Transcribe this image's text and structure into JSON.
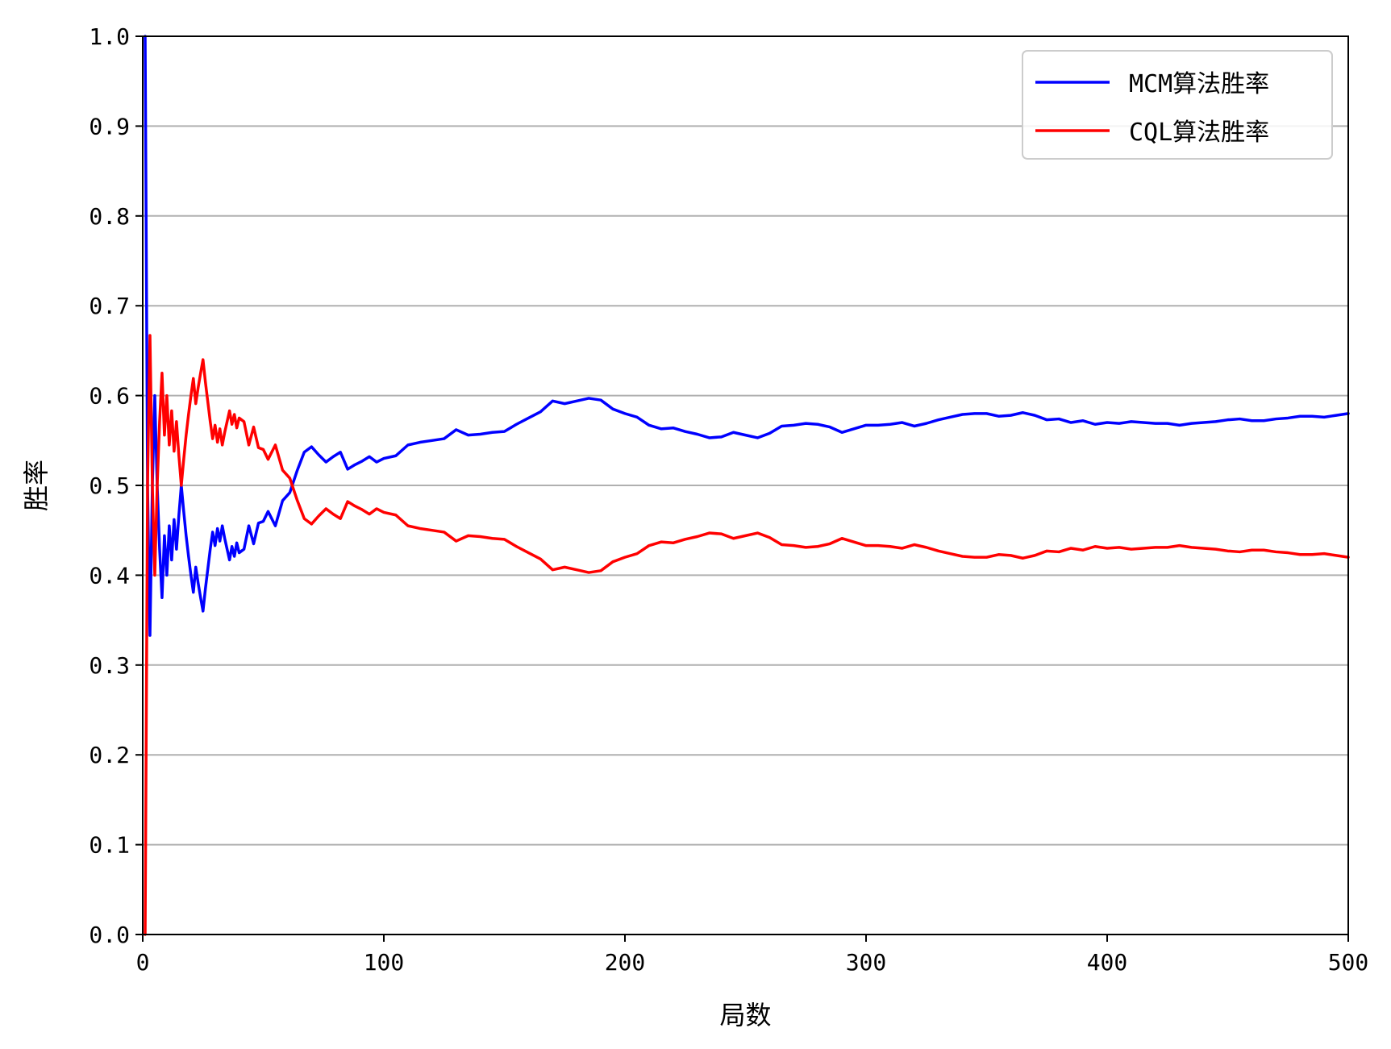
{
  "chart_data": {
    "type": "line",
    "title": "",
    "xlabel": "局数",
    "ylabel": "胜率",
    "xlim": [
      0,
      500
    ],
    "ylim": [
      0,
      1
    ],
    "xticks": [
      0,
      100,
      200,
      300,
      400,
      500
    ],
    "yticks": [
      0.0,
      0.1,
      0.2,
      0.3,
      0.4,
      0.5,
      0.6,
      0.7,
      0.8,
      0.9,
      1.0
    ],
    "xtick_labels": [
      "0",
      "100",
      "200",
      "300",
      "400",
      "500"
    ],
    "ytick_labels": [
      "0.0",
      "0.1",
      "0.2",
      "0.3",
      "0.4",
      "0.5",
      "0.6",
      "0.7",
      "0.8",
      "0.9",
      "1.0"
    ],
    "grid": "horizontal",
    "legend_position": "top-right",
    "series": [
      {
        "name": "MCM算法胜率",
        "color": "#0000ff",
        "points": [
          [
            1,
            1.0
          ],
          [
            2,
            0.5
          ],
          [
            3,
            0.333
          ],
          [
            4,
            0.5
          ],
          [
            5,
            0.6
          ],
          [
            6,
            0.5
          ],
          [
            7,
            0.429
          ],
          [
            8,
            0.375
          ],
          [
            9,
            0.444
          ],
          [
            10,
            0.4
          ],
          [
            11,
            0.455
          ],
          [
            12,
            0.417
          ],
          [
            13,
            0.462
          ],
          [
            14,
            0.429
          ],
          [
            15,
            0.467
          ],
          [
            16,
            0.5
          ],
          [
            17,
            0.471
          ],
          [
            18,
            0.444
          ],
          [
            19,
            0.421
          ],
          [
            20,
            0.4
          ],
          [
            21,
            0.381
          ],
          [
            22,
            0.409
          ],
          [
            23,
            0.391
          ],
          [
            24,
            0.375
          ],
          [
            25,
            0.36
          ],
          [
            26,
            0.385
          ],
          [
            27,
            0.407
          ],
          [
            28,
            0.429
          ],
          [
            29,
            0.448
          ],
          [
            30,
            0.433
          ],
          [
            31,
            0.452
          ],
          [
            32,
            0.438
          ],
          [
            33,
            0.455
          ],
          [
            34,
            0.441
          ],
          [
            35,
            0.429
          ],
          [
            36,
            0.417
          ],
          [
            37,
            0.432
          ],
          [
            38,
            0.421
          ],
          [
            39,
            0.436
          ],
          [
            40,
            0.425
          ],
          [
            42,
            0.429
          ],
          [
            44,
            0.455
          ],
          [
            46,
            0.435
          ],
          [
            48,
            0.458
          ],
          [
            50,
            0.46
          ],
          [
            52,
            0.471
          ],
          [
            55,
            0.455
          ],
          [
            58,
            0.483
          ],
          [
            61,
            0.492
          ],
          [
            64,
            0.516
          ],
          [
            67,
            0.537
          ],
          [
            70,
            0.543
          ],
          [
            73,
            0.534
          ],
          [
            76,
            0.526
          ],
          [
            79,
            0.532
          ],
          [
            82,
            0.537
          ],
          [
            85,
            0.518
          ],
          [
            88,
            0.523
          ],
          [
            91,
            0.527
          ],
          [
            94,
            0.532
          ],
          [
            97,
            0.526
          ],
          [
            100,
            0.53
          ],
          [
            105,
            0.533
          ],
          [
            110,
            0.545
          ],
          [
            115,
            0.548
          ],
          [
            120,
            0.55
          ],
          [
            125,
            0.552
          ],
          [
            130,
            0.562
          ],
          [
            135,
            0.556
          ],
          [
            140,
            0.557
          ],
          [
            145,
            0.559
          ],
          [
            150,
            0.56
          ],
          [
            155,
            0.568
          ],
          [
            160,
            0.575
          ],
          [
            165,
            0.582
          ],
          [
            170,
            0.594
          ],
          [
            175,
            0.591
          ],
          [
            180,
            0.594
          ],
          [
            185,
            0.597
          ],
          [
            190,
            0.595
          ],
          [
            195,
            0.585
          ],
          [
            200,
            0.58
          ],
          [
            205,
            0.576
          ],
          [
            210,
            0.567
          ],
          [
            215,
            0.563
          ],
          [
            220,
            0.564
          ],
          [
            225,
            0.56
          ],
          [
            230,
            0.557
          ],
          [
            235,
            0.553
          ],
          [
            240,
            0.554
          ],
          [
            245,
            0.559
          ],
          [
            250,
            0.556
          ],
          [
            255,
            0.553
          ],
          [
            260,
            0.558
          ],
          [
            265,
            0.566
          ],
          [
            270,
            0.567
          ],
          [
            275,
            0.569
          ],
          [
            280,
            0.568
          ],
          [
            285,
            0.565
          ],
          [
            290,
            0.559
          ],
          [
            295,
            0.563
          ],
          [
            300,
            0.567
          ],
          [
            305,
            0.567
          ],
          [
            310,
            0.568
          ],
          [
            315,
            0.57
          ],
          [
            320,
            0.566
          ],
          [
            325,
            0.569
          ],
          [
            330,
            0.573
          ],
          [
            335,
            0.576
          ],
          [
            340,
            0.579
          ],
          [
            345,
            0.58
          ],
          [
            350,
            0.58
          ],
          [
            355,
            0.577
          ],
          [
            360,
            0.578
          ],
          [
            365,
            0.581
          ],
          [
            370,
            0.578
          ],
          [
            375,
            0.573
          ],
          [
            380,
            0.574
          ],
          [
            385,
            0.57
          ],
          [
            390,
            0.572
          ],
          [
            395,
            0.568
          ],
          [
            400,
            0.57
          ],
          [
            405,
            0.569
          ],
          [
            410,
            0.571
          ],
          [
            415,
            0.57
          ],
          [
            420,
            0.569
          ],
          [
            425,
            0.569
          ],
          [
            430,
            0.567
          ],
          [
            435,
            0.569
          ],
          [
            440,
            0.57
          ],
          [
            445,
            0.571
          ],
          [
            450,
            0.573
          ],
          [
            455,
            0.574
          ],
          [
            460,
            0.572
          ],
          [
            465,
            0.572
          ],
          [
            470,
            0.574
          ],
          [
            475,
            0.575
          ],
          [
            480,
            0.577
          ],
          [
            485,
            0.577
          ],
          [
            490,
            0.576
          ],
          [
            495,
            0.578
          ],
          [
            500,
            0.58
          ]
        ]
      },
      {
        "name": "CQL算法胜率",
        "color": "#ff0000",
        "points": [
          [
            1,
            0.0
          ],
          [
            2,
            0.5
          ],
          [
            3,
            0.667
          ],
          [
            4,
            0.5
          ],
          [
            5,
            0.4
          ],
          [
            6,
            0.5
          ],
          [
            7,
            0.571
          ],
          [
            8,
            0.625
          ],
          [
            9,
            0.556
          ],
          [
            10,
            0.6
          ],
          [
            11,
            0.545
          ],
          [
            12,
            0.583
          ],
          [
            13,
            0.538
          ],
          [
            14,
            0.571
          ],
          [
            15,
            0.533
          ],
          [
            16,
            0.5
          ],
          [
            17,
            0.529
          ],
          [
            18,
            0.556
          ],
          [
            19,
            0.579
          ],
          [
            20,
            0.6
          ],
          [
            21,
            0.619
          ],
          [
            22,
            0.591
          ],
          [
            23,
            0.609
          ],
          [
            24,
            0.625
          ],
          [
            25,
            0.64
          ],
          [
            26,
            0.615
          ],
          [
            27,
            0.593
          ],
          [
            28,
            0.571
          ],
          [
            29,
            0.552
          ],
          [
            30,
            0.567
          ],
          [
            31,
            0.548
          ],
          [
            32,
            0.563
          ],
          [
            33,
            0.545
          ],
          [
            34,
            0.559
          ],
          [
            35,
            0.571
          ],
          [
            36,
            0.583
          ],
          [
            37,
            0.568
          ],
          [
            38,
            0.579
          ],
          [
            39,
            0.564
          ],
          [
            40,
            0.575
          ],
          [
            42,
            0.571
          ],
          [
            44,
            0.545
          ],
          [
            46,
            0.565
          ],
          [
            48,
            0.542
          ],
          [
            50,
            0.54
          ],
          [
            52,
            0.529
          ],
          [
            55,
            0.545
          ],
          [
            58,
            0.517
          ],
          [
            61,
            0.508
          ],
          [
            64,
            0.484
          ],
          [
            67,
            0.463
          ],
          [
            70,
            0.457
          ],
          [
            73,
            0.466
          ],
          [
            76,
            0.474
          ],
          [
            79,
            0.468
          ],
          [
            82,
            0.463
          ],
          [
            85,
            0.482
          ],
          [
            88,
            0.477
          ],
          [
            91,
            0.473
          ],
          [
            94,
            0.468
          ],
          [
            97,
            0.474
          ],
          [
            100,
            0.47
          ],
          [
            105,
            0.467
          ],
          [
            110,
            0.455
          ],
          [
            115,
            0.452
          ],
          [
            120,
            0.45
          ],
          [
            125,
            0.448
          ],
          [
            130,
            0.438
          ],
          [
            135,
            0.444
          ],
          [
            140,
            0.443
          ],
          [
            145,
            0.441
          ],
          [
            150,
            0.44
          ],
          [
            155,
            0.432
          ],
          [
            160,
            0.425
          ],
          [
            165,
            0.418
          ],
          [
            170,
            0.406
          ],
          [
            175,
            0.409
          ],
          [
            180,
            0.406
          ],
          [
            185,
            0.403
          ],
          [
            190,
            0.405
          ],
          [
            195,
            0.415
          ],
          [
            200,
            0.42
          ],
          [
            205,
            0.424
          ],
          [
            210,
            0.433
          ],
          [
            215,
            0.437
          ],
          [
            220,
            0.436
          ],
          [
            225,
            0.44
          ],
          [
            230,
            0.443
          ],
          [
            235,
            0.447
          ],
          [
            240,
            0.446
          ],
          [
            245,
            0.441
          ],
          [
            250,
            0.444
          ],
          [
            255,
            0.447
          ],
          [
            260,
            0.442
          ],
          [
            265,
            0.434
          ],
          [
            270,
            0.433
          ],
          [
            275,
            0.431
          ],
          [
            280,
            0.432
          ],
          [
            285,
            0.435
          ],
          [
            290,
            0.441
          ],
          [
            295,
            0.437
          ],
          [
            300,
            0.433
          ],
          [
            305,
            0.433
          ],
          [
            310,
            0.432
          ],
          [
            315,
            0.43
          ],
          [
            320,
            0.434
          ],
          [
            325,
            0.431
          ],
          [
            330,
            0.427
          ],
          [
            335,
            0.424
          ],
          [
            340,
            0.421
          ],
          [
            345,
            0.42
          ],
          [
            350,
            0.42
          ],
          [
            355,
            0.423
          ],
          [
            360,
            0.422
          ],
          [
            365,
            0.419
          ],
          [
            370,
            0.422
          ],
          [
            375,
            0.427
          ],
          [
            380,
            0.426
          ],
          [
            385,
            0.43
          ],
          [
            390,
            0.428
          ],
          [
            395,
            0.432
          ],
          [
            400,
            0.43
          ],
          [
            405,
            0.431
          ],
          [
            410,
            0.429
          ],
          [
            415,
            0.43
          ],
          [
            420,
            0.431
          ],
          [
            425,
            0.431
          ],
          [
            430,
            0.433
          ],
          [
            435,
            0.431
          ],
          [
            440,
            0.43
          ],
          [
            445,
            0.429
          ],
          [
            450,
            0.427
          ],
          [
            455,
            0.426
          ],
          [
            460,
            0.428
          ],
          [
            465,
            0.428
          ],
          [
            470,
            0.426
          ],
          [
            475,
            0.425
          ],
          [
            480,
            0.423
          ],
          [
            485,
            0.423
          ],
          [
            490,
            0.424
          ],
          [
            495,
            0.422
          ],
          [
            500,
            0.42
          ]
        ]
      }
    ]
  }
}
